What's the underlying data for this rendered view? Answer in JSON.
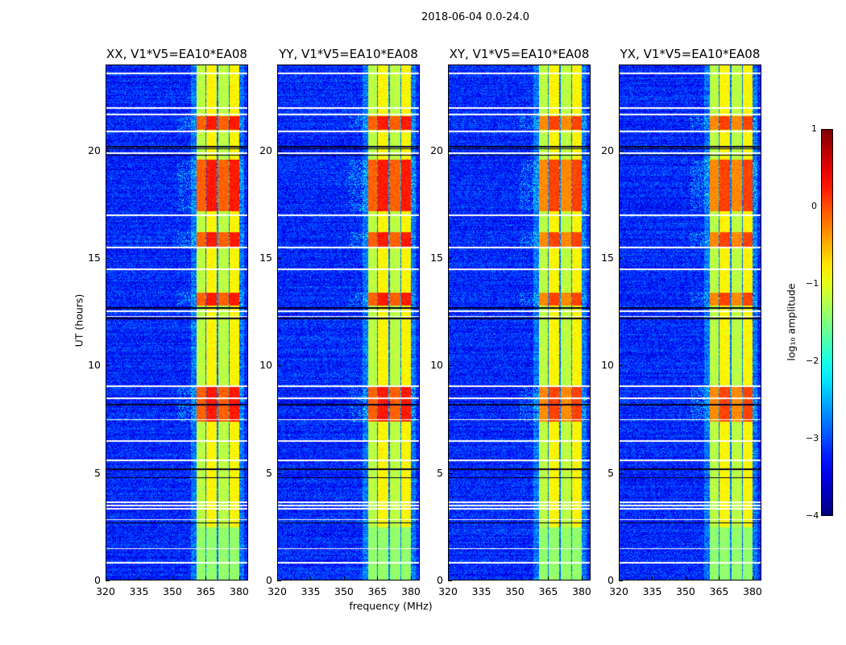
{
  "chart_data": {
    "type": "heatmap",
    "title": "2018-06-04 0.0-24.0",
    "xlabel": "frequency (MHz)",
    "ylabel": "UT (hours)",
    "xlim": [
      320,
      384
    ],
    "ylim": [
      0,
      24
    ],
    "xticks": [
      "320",
      "335",
      "350",
      "365",
      "380"
    ],
    "xtick_values": [
      320,
      335,
      350,
      365,
      380
    ],
    "yticks": [
      "0",
      "5",
      "10",
      "15",
      "20"
    ],
    "ytick_values": [
      0,
      5,
      10,
      15,
      20
    ],
    "panels": [
      {
        "title": "XX, V1*V5=EA10*EA08"
      },
      {
        "title": "YY, V1*V5=EA10*EA08"
      },
      {
        "title": "XY, V1*V5=EA10*EA08"
      },
      {
        "title": "YX, V1*V5=EA10*EA08"
      }
    ],
    "background_log_amplitude": -3.2,
    "rfi_subbands_mhz": [
      [
        360.5,
        364.5
      ],
      [
        365,
        369.8
      ],
      [
        370.3,
        375
      ],
      [
        375.5,
        380
      ]
    ],
    "strong_rfi_hours": [
      [
        7.4,
        9.0
      ],
      [
        12.8,
        13.4
      ],
      [
        15.5,
        16.2
      ],
      [
        17.2,
        19.6
      ],
      [
        21.0,
        21.6
      ]
    ],
    "flagged_hours_white": [
      0.85,
      1.5,
      2.85,
      3.35,
      3.5,
      3.65,
      5.6,
      6.5,
      7.5,
      8.5,
      9.05,
      12.3,
      12.55,
      14.5,
      15.5,
      17.0,
      19.9,
      20.9,
      21.7,
      22.0,
      23.6
    ],
    "dark_hours": [
      2.7,
      4.8,
      5.2,
      8.2,
      12.2,
      12.7,
      19.8,
      20.1,
      20.2
    ],
    "colorbar": {
      "label": "log₁₀ amplitude",
      "ticks": [
        "1",
        "0",
        "−1",
        "−2",
        "−3",
        "−4"
      ],
      "tick_values": [
        1,
        0,
        -1,
        -2,
        -3,
        -4
      ],
      "vmin": -4,
      "vmax": 1,
      "cmap": "jet"
    }
  }
}
